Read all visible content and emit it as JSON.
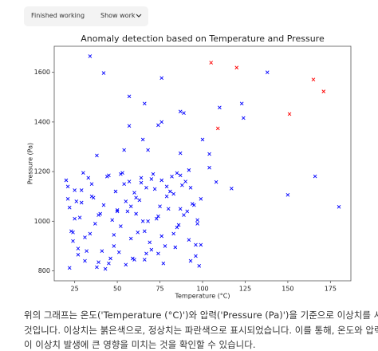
{
  "header": {
    "status": "Finished working",
    "toggle": "Show work"
  },
  "chart_data": {
    "type": "scatter",
    "title": "Anomaly detection based on Temperature and Pressure",
    "x_label": "Temperature (°C)",
    "y_label": "Pressure (Pa)",
    "xlim": [
      13,
      187
    ],
    "ylim": [
      760,
      1705
    ],
    "xticks": [
      25,
      50,
      75,
      100,
      125,
      150,
      175
    ],
    "yticks": [
      800,
      1000,
      1200,
      1400,
      1600
    ],
    "marker": "x",
    "series": [
      {
        "color": "#0000ff",
        "x": [
          22,
          35,
          48,
          61,
          74,
          87,
          97,
          29,
          55,
          81,
          25,
          41,
          52,
          66,
          79,
          93,
          31,
          58,
          70,
          99,
          21,
          37,
          45,
          63,
          76,
          89,
          27,
          53,
          68,
          95,
          24,
          33,
          50,
          59,
          72,
          85,
          99,
          43,
          64,
          91,
          26,
          39,
          47,
          57,
          78,
          83,
          30,
          62,
          74,
          96,
          23,
          36,
          51,
          67,
          80,
          92,
          28,
          44,
          60,
          88,
          20,
          34,
          49,
          65,
          77,
          94,
          32,
          56,
          71,
          86,
          27,
          40,
          54,
          69,
          82,
          97,
          25,
          46,
          61,
          90,
          22,
          38,
          52,
          64,
          75,
          84,
          35,
          58,
          79,
          98,
          29,
          42,
          48,
          66,
          73,
          93,
          24,
          55,
          70,
          87,
          31,
          45,
          60,
          83,
          96,
          21,
          39,
          67,
          76,
          50,
          34,
          42,
          76,
          138,
          57,
          66,
          87,
          89,
          57,
          74,
          76,
          110,
          124,
          123,
          38,
          54,
          65,
          68,
          87,
          104,
          104,
          108,
          117,
          100,
          166,
          150,
          180,
          85,
          92
        ],
        "values": [
          812,
          1150,
          945,
          1030,
          870,
          1185,
          990,
          1075,
          825,
          1120,
          1010,
          880,
          1190,
          960,
          1100,
          840,
          935,
          1060,
          1170,
          905,
          1140,
          990,
          830,
          1085,
          940,
          1025,
          865,
          1195,
          1000,
          1065,
          920,
          1175,
          1045,
          850,
          1130,
          975,
          1090,
          808,
          1155,
          1040,
          1080,
          835,
          1005,
          1160,
          900,
          1110,
          1195,
          955,
          1020,
          860,
          960,
          1095,
          875,
          1135,
          1050,
          925,
          1015,
          1180,
          845,
          1145,
          1165,
          950,
          1120,
          1000,
          830,
          1070,
          880,
          1040,
          1190,
          985,
          890,
          1030,
          1150,
          915,
          1180,
          1005,
          1125,
          850,
          1095,
          1160,
          1055,
          815,
          980,
          1175,
          1060,
          895,
          1100,
          930,
          1140,
          820,
          1125,
          1065,
          900,
          845,
          1010,
          1135,
          955,
          1080,
          885,
          1050,
          840,
          1185,
          1115,
          950,
          905,
          1090,
          1025,
          870,
          1165,
          1040,
          1665,
          1597,
          1577,
          1600,
          1503,
          1474,
          1442,
          1436,
          1384,
          1387,
          1400,
          1458,
          1416,
          1474,
          1265,
          1287,
          1329,
          1287,
          1274,
          1271,
          1216,
          1158,
          1132,
          1329,
          1181,
          1106,
          1058,
          1194,
          1206
        ]
      },
      {
        "color": "#ff0000",
        "x": [
          105,
          120,
          109,
          151,
          165,
          171
        ],
        "values": [
          1639,
          1619,
          1374,
          1432,
          1571,
          1523
        ]
      }
    ]
  },
  "caption": {
    "lines": [
      "위의 그래프는 온도('Temperature (°C)')와 압력('Pressure (Pa)')을 기준으로 이상치를 시각화한",
      "것입니다. 이상치는 붉은색으로, 정상치는 파란색으로 표시되었습니다. 이를 통해, 온도와 압력",
      "이 이상치 발생에 큰 영향을 미치는 것을 확인할 수 있습니다."
    ]
  }
}
